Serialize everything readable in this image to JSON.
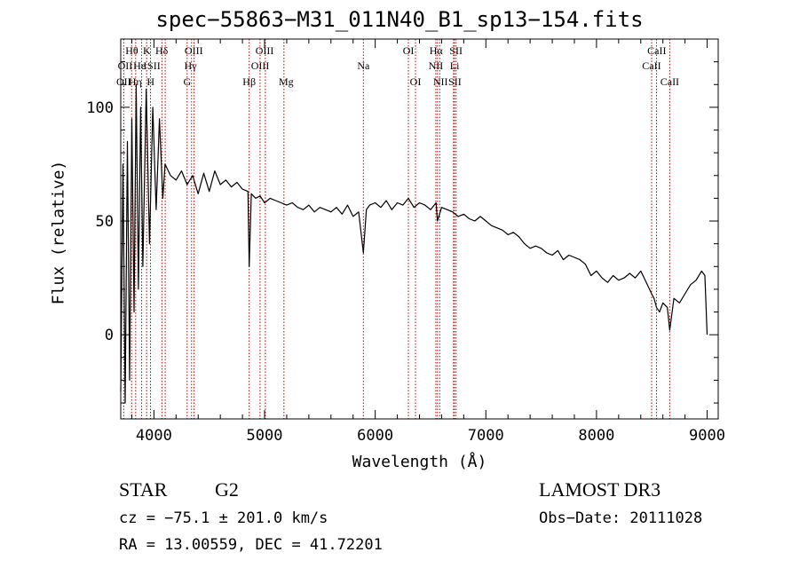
{
  "chart_data": {
    "type": "line",
    "title": "spec−55863−M31_011N40_B1_sp13−154.fits",
    "xlabel": "Wavelength (Å)",
    "ylabel": "Flux (relative)",
    "xlim": [
      3700,
      9100
    ],
    "ylim": [
      -37,
      130
    ],
    "xticks": [
      4000,
      5000,
      6000,
      7000,
      8000,
      9000
    ],
    "yticks": [
      0,
      50,
      100
    ],
    "series": [
      {
        "name": "spectrum",
        "x": [
          3700,
          3720,
          3740,
          3760,
          3780,
          3800,
          3820,
          3840,
          3860,
          3880,
          3900,
          3930,
          3960,
          3990,
          4020,
          4050,
          4080,
          4100,
          4150,
          4200,
          4250,
          4300,
          4350,
          4400,
          4450,
          4500,
          4550,
          4600,
          4650,
          4700,
          4750,
          4800,
          4850,
          4861,
          4880,
          4920,
          4960,
          5000,
          5050,
          5100,
          5150,
          5200,
          5250,
          5300,
          5350,
          5400,
          5450,
          5500,
          5550,
          5600,
          5650,
          5700,
          5750,
          5800,
          5850,
          5893,
          5920,
          5950,
          6000,
          6050,
          6100,
          6150,
          6200,
          6250,
          6300,
          6350,
          6400,
          6450,
          6500,
          6550,
          6563,
          6600,
          6650,
          6700,
          6750,
          6800,
          6850,
          6900,
          6950,
          7000,
          7050,
          7100,
          7150,
          7200,
          7250,
          7300,
          7350,
          7400,
          7450,
          7500,
          7550,
          7600,
          7650,
          7700,
          7750,
          7800,
          7850,
          7900,
          7950,
          8000,
          8050,
          8100,
          8150,
          8200,
          8250,
          8300,
          8350,
          8400,
          8450,
          8498,
          8520,
          8542,
          8570,
          8600,
          8640,
          8662,
          8700,
          8750,
          8800,
          8850,
          8900,
          8950,
          8980,
          9000
        ],
        "y": [
          -25,
          75,
          -30,
          85,
          -20,
          95,
          10,
          110,
          20,
          100,
          30,
          108,
          40,
          100,
          55,
          95,
          60,
          75,
          70,
          68,
          72,
          66,
          70,
          62,
          71,
          63,
          72,
          66,
          68,
          65,
          67,
          64,
          63,
          30,
          62,
          60,
          61,
          58,
          60,
          59,
          58,
          57,
          58,
          56,
          55,
          57,
          54,
          56,
          55,
          54,
          56,
          53,
          57,
          52,
          54,
          36,
          55,
          57,
          58,
          56,
          59,
          55,
          58,
          57,
          60,
          56,
          58,
          57,
          55,
          58,
          50,
          56,
          55,
          54,
          52,
          53,
          51,
          50,
          52,
          50,
          48,
          47,
          46,
          44,
          45,
          43,
          40,
          38,
          39,
          38,
          36,
          35,
          37,
          33,
          35,
          34,
          33,
          31,
          26,
          28,
          25,
          23,
          26,
          24,
          25,
          27,
          25,
          28,
          23,
          18,
          16,
          12,
          10,
          14,
          12,
          2,
          16,
          14,
          18,
          22,
          24,
          28,
          26,
          0
        ]
      }
    ],
    "lines": [
      {
        "name": "O II",
        "x": 3727
      },
      {
        "name": "H theta",
        "x": 3798
      },
      {
        "name": "H eta",
        "x": 3835
      },
      {
        "name": "He I",
        "x": 3889
      },
      {
        "name": "K",
        "x": 3934
      },
      {
        "name": "H",
        "x": 3969
      },
      {
        "name": "S II",
        "x": 4072
      },
      {
        "name": "H delta",
        "x": 4102
      },
      {
        "name": "G",
        "x": 4300
      },
      {
        "name": "H gamma",
        "x": 4340
      },
      {
        "name": "O III",
        "x": 4363
      },
      {
        "name": "H beta",
        "x": 4861
      },
      {
        "name": "O III",
        "x": 4959
      },
      {
        "name": "O III",
        "x": 5007
      },
      {
        "name": "Mg",
        "x": 5175
      },
      {
        "name": "Na",
        "x": 5893
      },
      {
        "name": "O I",
        "x": 6300
      },
      {
        "name": "O I",
        "x": 6364
      },
      {
        "name": "N II",
        "x": 6548
      },
      {
        "name": "H alpha",
        "x": 6563
      },
      {
        "name": "N II",
        "x": 6583
      },
      {
        "name": "Li",
        "x": 6708
      },
      {
        "name": "S II",
        "x": 6716
      },
      {
        "name": "S II",
        "x": 6731
      },
      {
        "name": "Ca II",
        "x": 8498
      },
      {
        "name": "Ca II",
        "x": 8542
      },
      {
        "name": "Ca II",
        "x": 8662
      }
    ],
    "line_labels": [
      {
        "text": "Hθ",
        "x": 3800,
        "row": 1
      },
      {
        "text": "K",
        "x": 3935,
        "row": 1
      },
      {
        "text": "Hδ",
        "x": 4070,
        "row": 1
      },
      {
        "text": "OIII",
        "x": 4360,
        "row": 1
      },
      {
        "text": "OIII",
        "x": 5000,
        "row": 1
      },
      {
        "text": "OI",
        "x": 6300,
        "row": 1
      },
      {
        "text": "Hα",
        "x": 6550,
        "row": 1
      },
      {
        "text": "SII",
        "x": 6730,
        "row": 1
      },
      {
        "text": "CaII",
        "x": 8545,
        "row": 1
      },
      {
        "text": "OII",
        "x": 3740,
        "row": 2
      },
      {
        "text": "He",
        "x": 3870,
        "row": 2
      },
      {
        "text": "I",
        "x": 3920,
        "row": 2
      },
      {
        "text": "SII",
        "x": 4000,
        "row": 2
      },
      {
        "text": "Hγ",
        "x": 4330,
        "row": 2
      },
      {
        "text": "OIII",
        "x": 4960,
        "row": 2
      },
      {
        "text": "Na",
        "x": 5893,
        "row": 2
      },
      {
        "text": "NII",
        "x": 6548,
        "row": 2
      },
      {
        "text": "Li",
        "x": 6718,
        "row": 2
      },
      {
        "text": "CaII",
        "x": 8498,
        "row": 2
      },
      {
        "text": "OII",
        "x": 3727,
        "row": 3
      },
      {
        "text": "Hη",
        "x": 3830,
        "row": 3
      },
      {
        "text": "H",
        "x": 3970,
        "row": 3
      },
      {
        "text": "G",
        "x": 4300,
        "row": 3
      },
      {
        "text": "Hβ",
        "x": 4861,
        "row": 3
      },
      {
        "text": "Mg",
        "x": 5195,
        "row": 3
      },
      {
        "text": "OI",
        "x": 6364,
        "row": 3
      },
      {
        "text": "NII",
        "x": 6590,
        "row": 3
      },
      {
        "text": "SII",
        "x": 6720,
        "row": 3
      },
      {
        "text": "CaII",
        "x": 8662,
        "row": 3
      }
    ]
  },
  "info": {
    "class": "STAR",
    "subclass": "G2",
    "survey": "LAMOST DR3",
    "cz": "cz = −75.1 ± 201.0 km/s",
    "obs_date": "Obs−Date: 20111028",
    "radec": "RA =  13.00559, DEC =  41.72201"
  }
}
